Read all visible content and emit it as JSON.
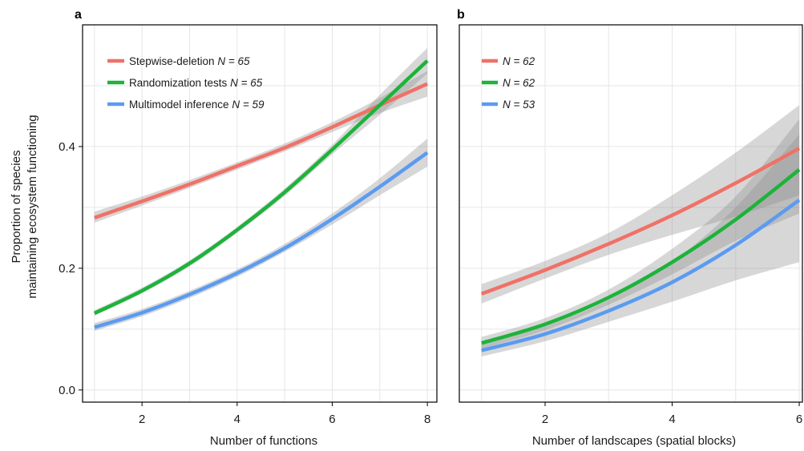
{
  "colors": {
    "stepwise": "#f07167",
    "randomization": "#1db33a",
    "multimodel": "#5b9bf0",
    "band": "#8c8c8c"
  },
  "y_axis_title_line1": "Proportion of species",
  "y_axis_title_line2": "maintaining ecosystem functioning",
  "chart_data": [
    {
      "panel": "a",
      "type": "line",
      "xlabel": "Number of functions",
      "xlim": [
        0.75,
        8.2
      ],
      "ylim": [
        -0.02,
        0.6
      ],
      "xticks": [
        2,
        4,
        6,
        8
      ],
      "yticks": [
        0.0,
        0.2,
        0.4
      ],
      "ytick_labels": [
        "0.0",
        "0.2",
        "0.4"
      ],
      "grid": true,
      "legend_position": "top-left",
      "series": [
        {
          "key": "stepwise",
          "legend_label": "Stepwise-deletion",
          "legend_n": "N = 65",
          "x": [
            1,
            2,
            3,
            4,
            5,
            6,
            7,
            8
          ],
          "y": [
            0.283,
            0.31,
            0.338,
            0.368,
            0.398,
            0.432,
            0.468,
            0.503
          ],
          "lower": [
            0.275,
            0.303,
            0.332,
            0.362,
            0.392,
            0.424,
            0.455,
            0.482
          ],
          "upper": [
            0.293,
            0.318,
            0.345,
            0.374,
            0.405,
            0.44,
            0.48,
            0.524
          ]
        },
        {
          "key": "randomization",
          "legend_label": "Randomization tests",
          "legend_n": "N = 65",
          "x": [
            1,
            2,
            3,
            4,
            5,
            6,
            7,
            8
          ],
          "y": [
            0.126,
            0.163,
            0.208,
            0.263,
            0.325,
            0.395,
            0.468,
            0.541
          ],
          "lower": [
            0.122,
            0.159,
            0.203,
            0.258,
            0.319,
            0.387,
            0.452,
            0.52
          ],
          "upper": [
            0.131,
            0.168,
            0.213,
            0.268,
            0.331,
            0.403,
            0.485,
            0.562
          ]
        },
        {
          "key": "multimodel",
          "legend_label": "Multimodel inference",
          "legend_n": "N = 59",
          "x": [
            1,
            2,
            3,
            4,
            5,
            6,
            7,
            8
          ],
          "y": [
            0.103,
            0.127,
            0.157,
            0.192,
            0.233,
            0.281,
            0.334,
            0.39
          ],
          "lower": [
            0.097,
            0.121,
            0.151,
            0.186,
            0.227,
            0.272,
            0.32,
            0.367
          ],
          "upper": [
            0.11,
            0.133,
            0.163,
            0.198,
            0.24,
            0.29,
            0.348,
            0.413
          ]
        }
      ]
    },
    {
      "panel": "b",
      "type": "line",
      "xlabel": "Number of landscapes (spatial blocks)",
      "xlim": [
        0.65,
        6.05
      ],
      "ylim": [
        -0.02,
        0.6
      ],
      "xticks": [
        2,
        4,
        6
      ],
      "yticks": [
        0.0,
        0.2,
        0.4
      ],
      "grid": true,
      "legend_position": "top-left",
      "series": [
        {
          "key": "stepwise",
          "legend_label": "",
          "legend_n": "N = 62",
          "x": [
            1,
            2,
            3,
            4,
            5,
            6
          ],
          "y": [
            0.158,
            0.197,
            0.24,
            0.287,
            0.34,
            0.397
          ],
          "lower": [
            0.142,
            0.183,
            0.222,
            0.255,
            0.285,
            0.32
          ],
          "upper": [
            0.174,
            0.212,
            0.258,
            0.32,
            0.39,
            0.468
          ]
        },
        {
          "key": "randomization",
          "legend_label": "",
          "legend_n": "N = 62",
          "x": [
            1,
            2,
            3,
            4,
            5,
            6
          ],
          "y": [
            0.077,
            0.108,
            0.152,
            0.21,
            0.28,
            0.362
          ],
          "lower": [
            0.068,
            0.098,
            0.14,
            0.19,
            0.245,
            0.29
          ],
          "upper": [
            0.087,
            0.118,
            0.165,
            0.232,
            0.318,
            0.445
          ]
        },
        {
          "key": "multimodel",
          "legend_label": "",
          "legend_n": "N = 53",
          "x": [
            1,
            2,
            3,
            4,
            5,
            6
          ],
          "y": [
            0.065,
            0.092,
            0.13,
            0.177,
            0.238,
            0.312
          ],
          "lower": [
            0.055,
            0.08,
            0.112,
            0.145,
            0.18,
            0.21
          ],
          "upper": [
            0.076,
            0.105,
            0.148,
            0.21,
            0.3,
            0.42
          ]
        }
      ]
    }
  ]
}
